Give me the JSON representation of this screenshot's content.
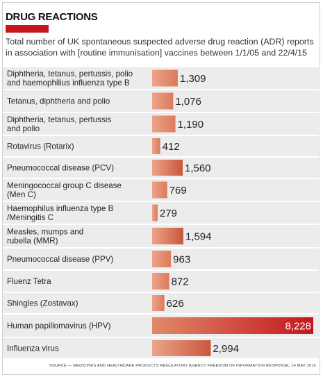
{
  "title": "DRUG REACTIONS",
  "subtitle": "Total number of UK spontaneous suspected adverse drug reaction (ADR) reports in association with [routine immunisation] vaccines between 1/1/05 and 22/4/15",
  "source": "SOURCE — MEDICINES AND HEALTHCARE PRODUCTS REGULATORY AGENCY FREEDOM OF INFORMATION RESPONSE, 14 MAY 2015",
  "colors": {
    "title_bar": "#c4161c",
    "bar": "#e08a6a",
    "bar_highlight": "#c4161c",
    "row_band": "#ececec",
    "separator": "#ffffff"
  },
  "chart_data": {
    "type": "bar",
    "orientation": "horizontal",
    "categories": [
      "Diphtheria, tetanus, pertussis, polio and haemophilius influenza type B",
      "Tetanus, diphtheria and polio",
      "Diphtheria, tetanus, pertussis and polio",
      "Rotavirus (Rotarix)",
      "Pneumococcal disease (PCV)",
      "Meningococcal group C disease (Men C)",
      "Haemophilus influenza type B /Meningitis C",
      "Measles, mumps and rubella (MMR)",
      "Pneumococcal disease (PPV)",
      "Fluenz Tetra",
      "Shingles (Zostavax)",
      "Human papillomavirus (HPV)",
      "Influenza virus"
    ],
    "label_lines": [
      [
        "Diphtheria, tetanus, pertussis, polio",
        "and haemophilius influenza type B"
      ],
      [
        "Tetanus, diphtheria and polio"
      ],
      [
        "Diphtheria, tetanus, pertussis",
        "and polio"
      ],
      [
        "Rotavirus (Rotarix)"
      ],
      [
        "Pneumococcal disease (PCV)"
      ],
      [
        "Meningococcal group C disease",
        "(Men C)"
      ],
      [
        "Haemophilus influenza type B",
        "/Meningitis C"
      ],
      [
        "Measles, mumps and",
        "rubella (MMR)"
      ],
      [
        "Pneumococcal disease (PPV)"
      ],
      [
        "Fluenz Tetra"
      ],
      [
        "Shingles (Zostavax)"
      ],
      [
        "Human papillomavirus (HPV)"
      ],
      [
        "Influenza virus"
      ]
    ],
    "values": [
      1309,
      1076,
      1190,
      412,
      1560,
      769,
      279,
      1594,
      963,
      872,
      626,
      8228,
      2994
    ],
    "value_labels": [
      "1,309",
      "1,076",
      "1,190",
      "412",
      "1,560",
      "769",
      "279",
      "1,594",
      "963",
      "872",
      "626",
      "8,228",
      "2,994"
    ],
    "highlight_index": 11,
    "xlim": [
      0,
      8228
    ],
    "grid": false,
    "legend": "none"
  }
}
